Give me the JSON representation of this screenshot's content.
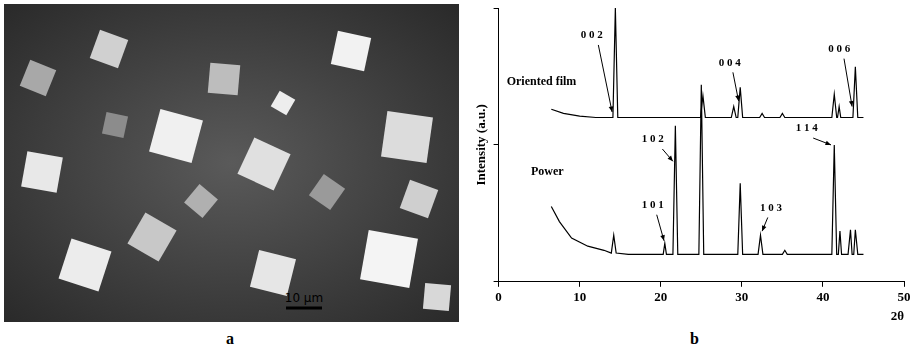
{
  "panel_a": {
    "label": "a",
    "scale_bar_label": "10 μm"
  },
  "chart_data": {
    "type": "line",
    "panel_label": "b",
    "x_label": "2θ",
    "y_label": "Intensity (a.u.)",
    "xlim": [
      0,
      50
    ],
    "xticks": [
      0,
      10,
      20,
      30,
      40,
      50
    ],
    "ylim": [
      0,
      100
    ],
    "yticks": [
      0,
      50,
      100
    ],
    "tick_labels": "x",
    "grid": false,
    "series": [
      {
        "name": "Oriented film",
        "color": "#000000",
        "label_x": 1,
        "label_y": 73,
        "x": [
          6.5,
          8,
          10,
          12,
          13.0,
          14.1,
          14.4,
          14.7,
          18,
          22,
          24.9,
          25.2,
          25.5,
          28.7,
          29.0,
          29.3,
          29.5,
          29.8,
          30.1,
          32.2,
          32.5,
          32.8,
          34.7,
          35.0,
          35.3,
          41.1,
          41.4,
          41.7,
          41.8,
          42.0,
          42.2,
          43.7,
          44.0,
          44.3,
          45
        ],
        "values": [
          63,
          61.5,
          60.5,
          60,
          60,
          60,
          100,
          60,
          60,
          60,
          60,
          68,
          60,
          60,
          64,
          60,
          60,
          71,
          60,
          60,
          61.5,
          60,
          60,
          61.5,
          60,
          60,
          68.5,
          60,
          60,
          64,
          60,
          60,
          78.5,
          60,
          60
        ]
      },
      {
        "name": "Power",
        "color": "#000000",
        "label_x": 4,
        "label_y": 40,
        "x": [
          6.5,
          7.5,
          9,
          11,
          13,
          13.9,
          14.2,
          14.5,
          16,
          19,
          20.3,
          20.5,
          20.7,
          21.5,
          21.8,
          22.1,
          24.7,
          25.0,
          25.3,
          29.5,
          29.8,
          30.1,
          32.0,
          32.3,
          32.6,
          35.0,
          35.3,
          35.6,
          41.1,
          41.4,
          41.7,
          41.9,
          42.1,
          42.3,
          43.1,
          43.4,
          43.6,
          43.8,
          44.0,
          44.3,
          45
        ],
        "values": [
          27.5,
          22,
          16,
          13,
          11.5,
          10.5,
          17,
          10.5,
          10,
          10,
          10,
          14,
          10,
          10,
          57,
          10,
          10,
          72,
          10,
          10,
          36,
          10,
          10,
          17,
          10,
          10,
          11.5,
          10,
          10,
          50,
          10,
          10,
          18.5,
          10,
          10,
          19,
          10,
          10,
          19,
          10,
          10
        ]
      }
    ],
    "annotations": [
      {
        "text": "0 0 2",
        "x": 11.5,
        "y": 90,
        "arrow_from": [
          12.3,
          86.5
        ],
        "arrow_to": [
          14.0,
          62
        ]
      },
      {
        "text": "0 0 4",
        "x": 28.5,
        "y": 80,
        "arrow_from": [
          28.9,
          76.5
        ],
        "arrow_to": [
          29.6,
          66
        ]
      },
      {
        "text": "0 0 6",
        "x": 42.0,
        "y": 85,
        "arrow_from": [
          42.6,
          81.5
        ],
        "arrow_to": [
          43.6,
          64
        ]
      },
      {
        "text": "1 0 1",
        "x": 19.0,
        "y": 28,
        "arrow_from": [
          19.5,
          24.5
        ],
        "arrow_to": [
          20.4,
          15
        ]
      },
      {
        "text": "1 0 2",
        "x": 19.0,
        "y": 52,
        "arrow_from": [
          20.2,
          48.5
        ],
        "arrow_to": [
          21.5,
          44
        ]
      },
      {
        "text": "1 0 3",
        "x": 33.6,
        "y": 27,
        "arrow_from": [
          33.2,
          23.5
        ],
        "arrow_to": [
          32.5,
          18.5
        ]
      },
      {
        "text": "1 1 4",
        "x": 38.0,
        "y": 56,
        "arrow_from": [
          38.8,
          52.5
        ],
        "arrow_to": [
          41.0,
          50
        ]
      }
    ]
  }
}
